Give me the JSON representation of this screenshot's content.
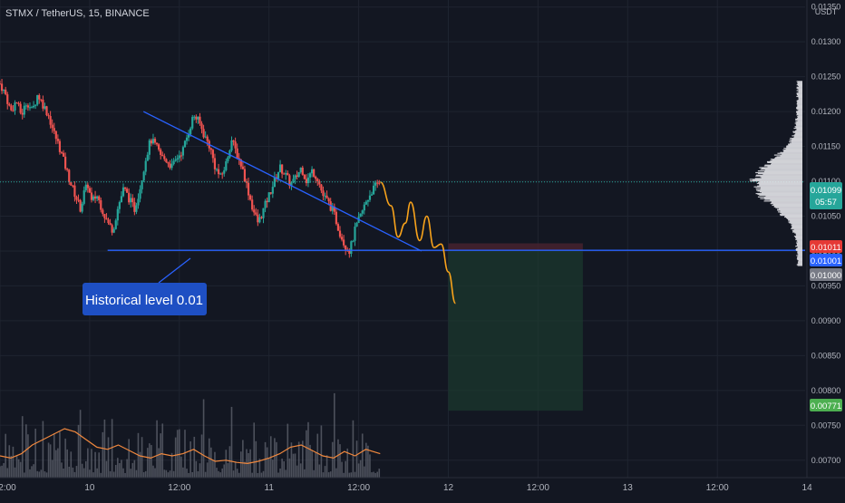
{
  "header": {
    "symbol_title": "STMX / TetherUS, 15, BINANCE"
  },
  "axis": {
    "currency": "USDT"
  },
  "annotation": {
    "text": "Historical level 0.01"
  },
  "price_badges": {
    "last_price": "0.01099",
    "countdown": "05:57",
    "stop_loss": "0.01011",
    "entry": "0.01001",
    "level": "0.01000",
    "target": "0.00771"
  },
  "colors": {
    "background": "#131722",
    "up_candle": "#26a69a",
    "down_candle": "#ef5350",
    "trendline": "#2962ff",
    "projection": "#f7a21b",
    "volume_ma": "#f0883e",
    "profit_zone": "#1b3b2e",
    "stop_zone": "#4a2330",
    "badge_last": "#26a69a",
    "badge_stop": "#e53935",
    "badge_entry": "#2962ff",
    "badge_level": "#787b86",
    "badge_target": "#4caf50",
    "annotation_bg": "#1e4fc3"
  },
  "chart_data": {
    "type": "candlestick",
    "title": "STMX / TetherUS, 15, BINANCE",
    "ylabel": "USDT",
    "ylim": [
      0.00675,
      0.0136
    ],
    "y_ticks": [
      "0.01350",
      "0.01300",
      "0.01250",
      "0.01200",
      "0.01150",
      "0.01100",
      "0.01050",
      "0.01000",
      "0.00950",
      "0.00900",
      "0.00850",
      "0.00800",
      "0.00750",
      "0.00700"
    ],
    "x_ticks": [
      "2:00",
      "10",
      "12:00",
      "11",
      "12:00",
      "12",
      "12:00",
      "13",
      "12:00",
      "14"
    ],
    "x_range_days": [
      9.5,
      14.05
    ],
    "close_path": [
      [
        9.5,
        0.0124
      ],
      [
        9.53,
        0.01225
      ],
      [
        9.56,
        0.012
      ],
      [
        9.59,
        0.01215
      ],
      [
        9.62,
        0.01195
      ],
      [
        9.65,
        0.01215
      ],
      [
        9.68,
        0.012
      ],
      [
        9.71,
        0.01225
      ],
      [
        9.74,
        0.0121
      ],
      [
        9.77,
        0.01195
      ],
      [
        9.8,
        0.0117
      ],
      [
        9.83,
        0.0115
      ],
      [
        9.86,
        0.01125
      ],
      [
        9.89,
        0.011
      ],
      [
        9.92,
        0.0108
      ],
      [
        9.95,
        0.0106
      ],
      [
        9.97,
        0.01085
      ],
      [
        9.99,
        0.01095
      ],
      [
        10.01,
        0.0107
      ],
      [
        10.04,
        0.0108
      ],
      [
        10.07,
        0.0106
      ],
      [
        10.1,
        0.0104
      ],
      [
        10.13,
        0.0103
      ],
      [
        10.16,
        0.01065
      ],
      [
        10.19,
        0.0109
      ],
      [
        10.22,
        0.01075
      ],
      [
        10.25,
        0.0106
      ],
      [
        10.28,
        0.0109
      ],
      [
        10.31,
        0.0113
      ],
      [
        10.34,
        0.0116
      ],
      [
        10.37,
        0.0115
      ],
      [
        10.4,
        0.01135
      ],
      [
        10.43,
        0.0113
      ],
      [
        10.46,
        0.0112
      ],
      [
        10.49,
        0.01135
      ],
      [
        10.52,
        0.01145
      ],
      [
        10.55,
        0.0117
      ],
      [
        10.58,
        0.01195
      ],
      [
        10.61,
        0.01185
      ],
      [
        10.64,
        0.01165
      ],
      [
        10.67,
        0.0115
      ],
      [
        10.7,
        0.0112
      ],
      [
        10.73,
        0.01105
      ],
      [
        10.76,
        0.01125
      ],
      [
        10.79,
        0.0116
      ],
      [
        10.82,
        0.0114
      ],
      [
        10.85,
        0.0112
      ],
      [
        10.88,
        0.0109
      ],
      [
        10.91,
        0.0106
      ],
      [
        10.94,
        0.0104
      ],
      [
        10.97,
        0.0106
      ],
      [
        11.0,
        0.0108
      ],
      [
        11.03,
        0.011
      ],
      [
        11.06,
        0.0112
      ],
      [
        11.09,
        0.0111
      ],
      [
        11.12,
        0.01095
      ],
      [
        11.15,
        0.01105
      ],
      [
        11.18,
        0.0112
      ],
      [
        11.21,
        0.011
      ],
      [
        11.24,
        0.01115
      ],
      [
        11.27,
        0.01105
      ],
      [
        11.3,
        0.0108
      ],
      [
        11.33,
        0.0107
      ],
      [
        11.36,
        0.01055
      ],
      [
        11.39,
        0.0103
      ],
      [
        11.42,
        0.0101
      ],
      [
        11.45,
        0.01
      ],
      [
        11.48,
        0.0103
      ],
      [
        11.51,
        0.0105
      ],
      [
        11.54,
        0.0107
      ],
      [
        11.57,
        0.01085
      ],
      [
        11.6,
        0.01095
      ],
      [
        11.62,
        0.01099
      ]
    ],
    "volume_ma": [
      [
        9.5,
        0.2
      ],
      [
        9.56,
        0.18
      ],
      [
        9.62,
        0.22
      ],
      [
        9.68,
        0.3
      ],
      [
        9.74,
        0.35
      ],
      [
        9.8,
        0.4
      ],
      [
        9.86,
        0.45
      ],
      [
        9.92,
        0.42
      ],
      [
        9.98,
        0.35
      ],
      [
        10.04,
        0.28
      ],
      [
        10.1,
        0.26
      ],
      [
        10.16,
        0.3
      ],
      [
        10.22,
        0.25
      ],
      [
        10.28,
        0.2
      ],
      [
        10.34,
        0.18
      ],
      [
        10.4,
        0.22
      ],
      [
        10.46,
        0.2
      ],
      [
        10.52,
        0.22
      ],
      [
        10.58,
        0.26
      ],
      [
        10.64,
        0.2
      ],
      [
        10.7,
        0.15
      ],
      [
        10.76,
        0.16
      ],
      [
        10.82,
        0.14
      ],
      [
        10.88,
        0.13
      ],
      [
        10.94,
        0.15
      ],
      [
        11.0,
        0.18
      ],
      [
        11.06,
        0.22
      ],
      [
        11.12,
        0.28
      ],
      [
        11.18,
        0.3
      ],
      [
        11.24,
        0.25
      ],
      [
        11.3,
        0.2
      ],
      [
        11.36,
        0.18
      ],
      [
        11.42,
        0.24
      ],
      [
        11.48,
        0.2
      ],
      [
        11.54,
        0.26
      ],
      [
        11.62,
        0.22
      ]
    ],
    "horizontal_levels": [
      0.01001,
      0.01
    ],
    "trendline": {
      "from": [
        10.3,
        0.012
      ],
      "to": [
        11.85,
        0.01
      ]
    },
    "support_line": {
      "from": [
        10.1,
        0.01001
      ],
      "to": [
        14.05,
        0.01001
      ]
    },
    "projection_path": [
      [
        11.62,
        0.01099
      ],
      [
        11.68,
        0.01065
      ],
      [
        11.72,
        0.0102
      ],
      [
        11.76,
        0.0104
      ],
      [
        11.79,
        0.0107
      ],
      [
        11.84,
        0.01015
      ],
      [
        11.88,
        0.0105
      ],
      [
        11.92,
        0.01005
      ],
      [
        11.96,
        0.0101
      ],
      [
        12.0,
        0.0097
      ],
      [
        12.04,
        0.00925
      ]
    ],
    "position_box": {
      "x_from": 12.0,
      "x_to": 12.75,
      "entry": 0.01001,
      "stop": 0.01011,
      "target": 0.00771
    }
  }
}
